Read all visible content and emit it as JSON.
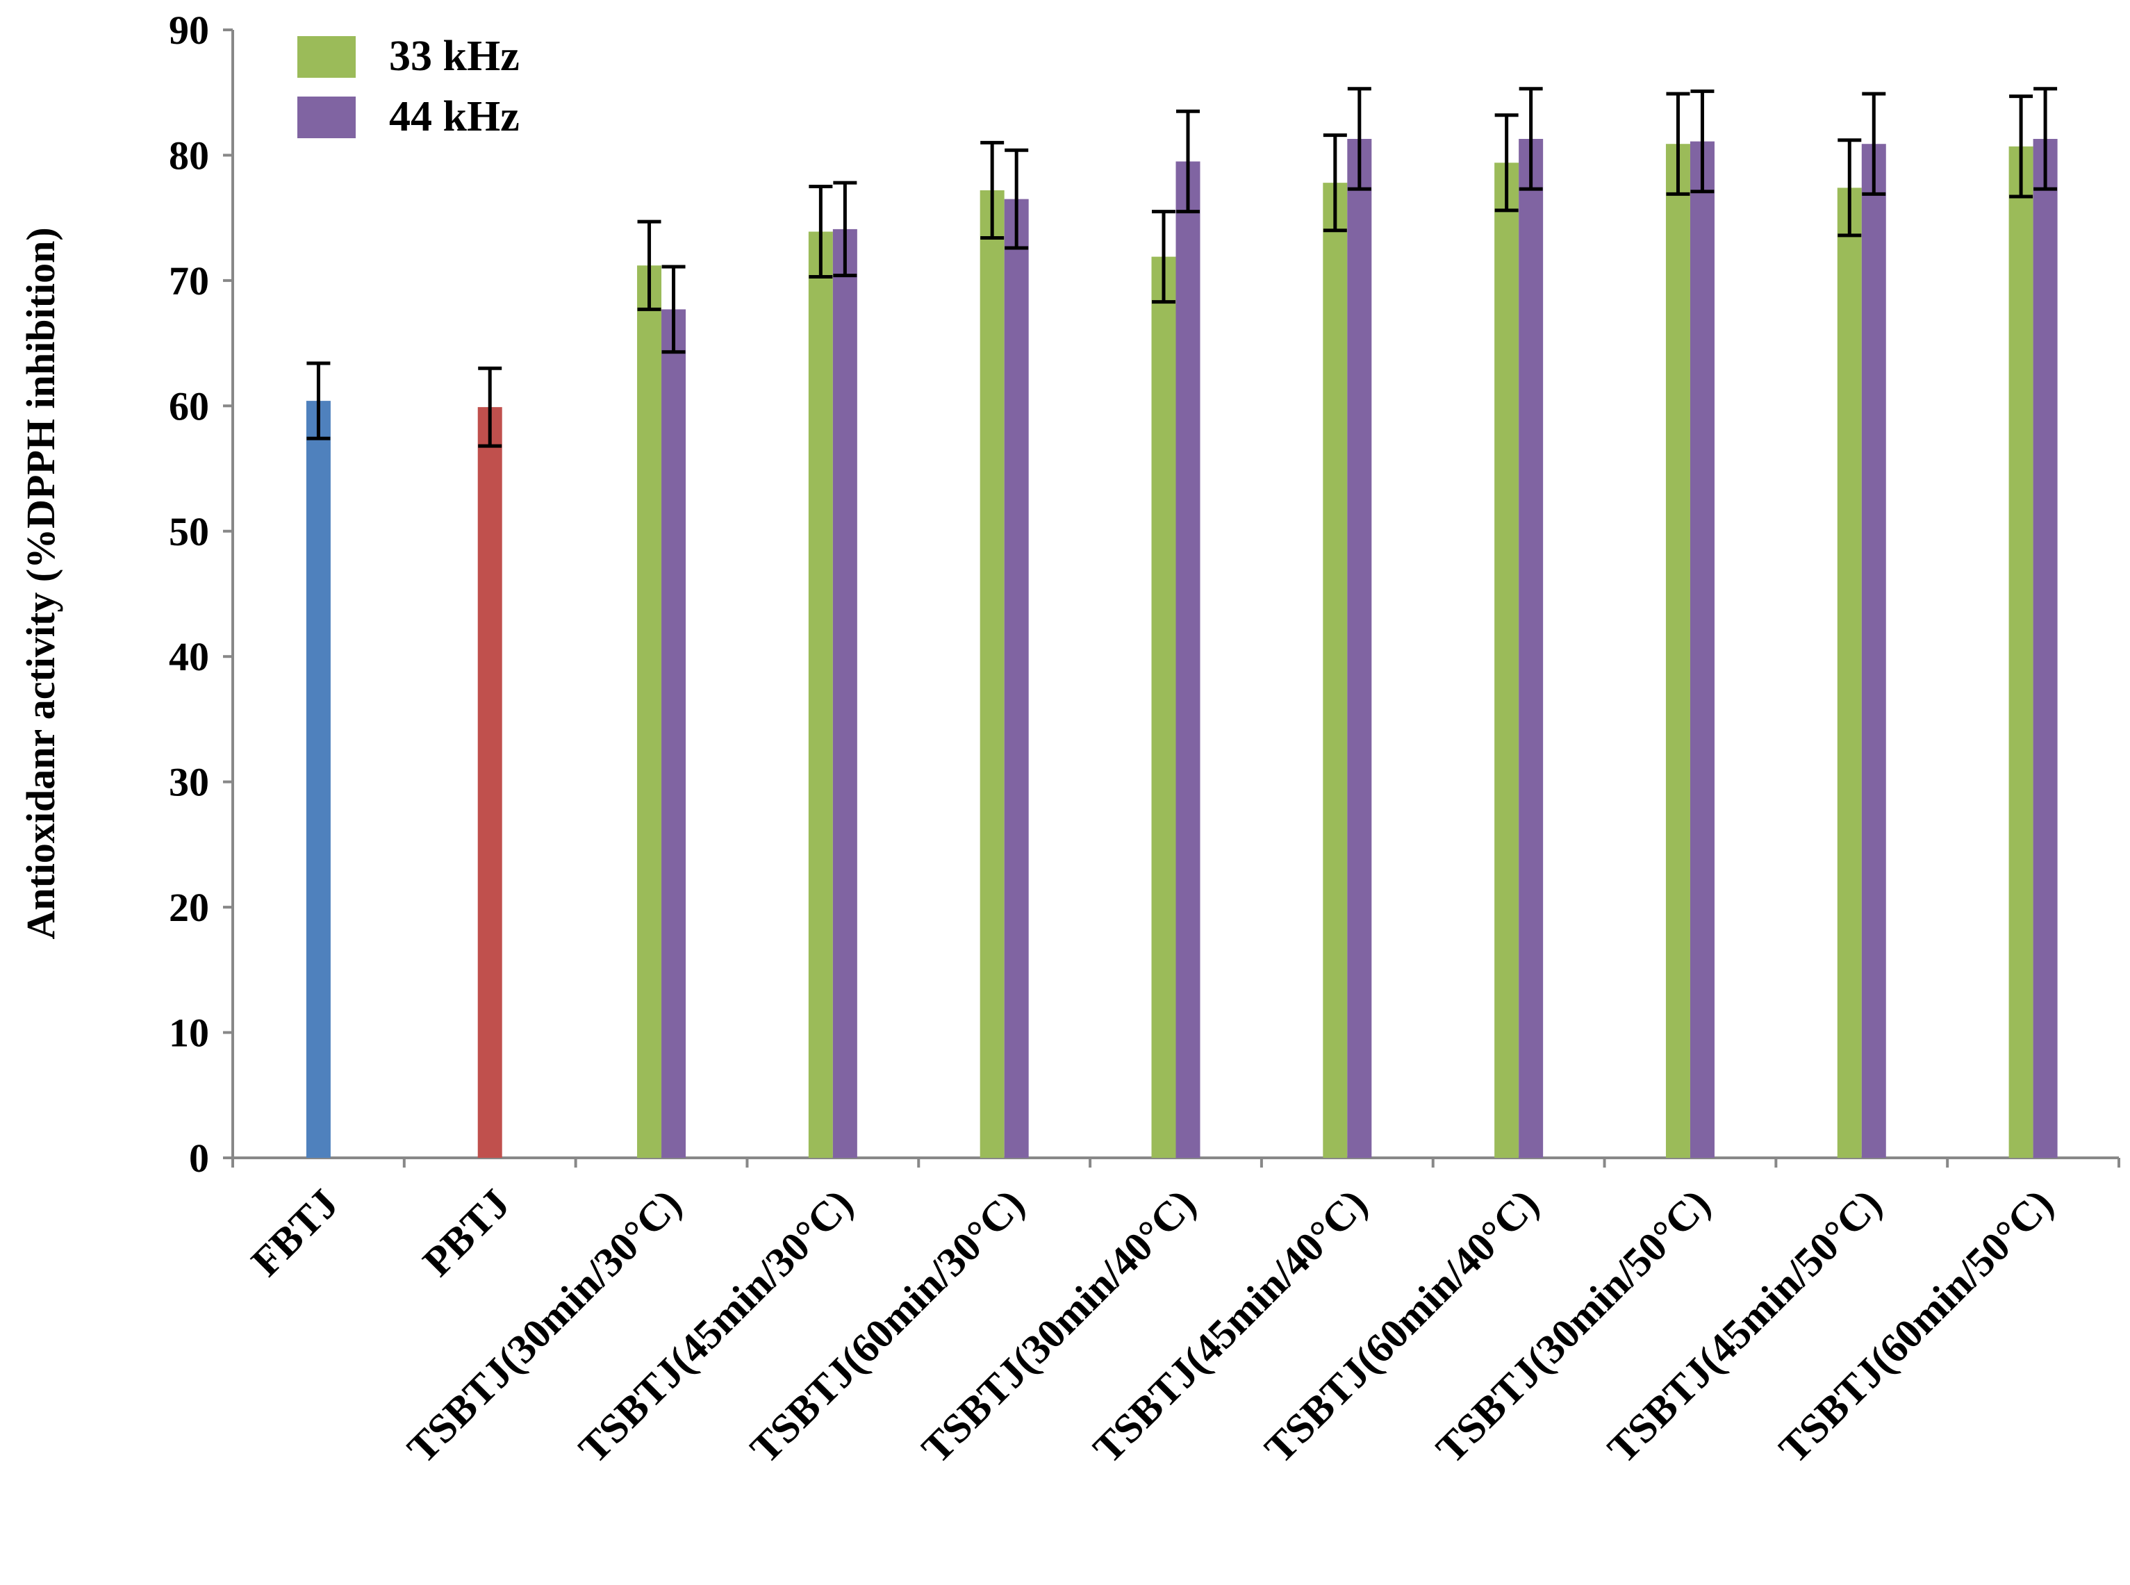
{
  "chart_data": {
    "type": "bar",
    "title": "",
    "xlabel": "",
    "ylabel": "Antioxidanr activity (%DPPH inhibition)",
    "ylim": [
      0,
      90
    ],
    "yticks": [
      0,
      10,
      20,
      30,
      40,
      50,
      60,
      70,
      80,
      90
    ],
    "grid": false,
    "legend_position": "top-left",
    "categories": [
      "FBTJ",
      "PBTJ",
      "TSBTJ(30min/30°C)",
      "TSBTJ(45min/30°C)",
      "TSBTJ(60min/30°C)",
      "TSBTJ(30min/40°C)",
      "TSBTJ(45min/40°C)",
      "TSBTJ(60min/40°C)",
      "TSBTJ(30min/50°C)",
      "TSBTJ(45min/50°C)",
      "TSBTJ(60min/50°C)"
    ],
    "series": [
      {
        "name": "FBTJ",
        "in_legend": false,
        "color": "#4f81bd",
        "values": [
          60.4,
          null,
          null,
          null,
          null,
          null,
          null,
          null,
          null,
          null,
          null
        ],
        "errors": [
          3.0,
          null,
          null,
          null,
          null,
          null,
          null,
          null,
          null,
          null,
          null
        ]
      },
      {
        "name": "PBTJ",
        "in_legend": false,
        "color": "#c0504d",
        "values": [
          null,
          59.9,
          null,
          null,
          null,
          null,
          null,
          null,
          null,
          null,
          null
        ],
        "errors": [
          null,
          3.1,
          null,
          null,
          null,
          null,
          null,
          null,
          null,
          null,
          null
        ]
      },
      {
        "name": "33 kHz",
        "in_legend": true,
        "color": "#9bbb59",
        "values": [
          null,
          null,
          71.2,
          73.9,
          77.2,
          71.9,
          77.8,
          79.4,
          80.9,
          77.4,
          80.7
        ],
        "errors": [
          null,
          null,
          3.5,
          3.6,
          3.8,
          3.6,
          3.8,
          3.8,
          4.0,
          3.8,
          4.0
        ]
      },
      {
        "name": "44 kHz",
        "in_legend": true,
        "color": "#8064a2",
        "values": [
          null,
          null,
          67.7,
          74.1,
          76.5,
          79.5,
          81.3,
          81.3,
          81.1,
          80.9,
          81.3
        ],
        "errors": [
          null,
          null,
          3.4,
          3.7,
          3.9,
          4.0,
          4.0,
          4.0,
          4.0,
          4.0,
          4.0
        ]
      }
    ]
  }
}
